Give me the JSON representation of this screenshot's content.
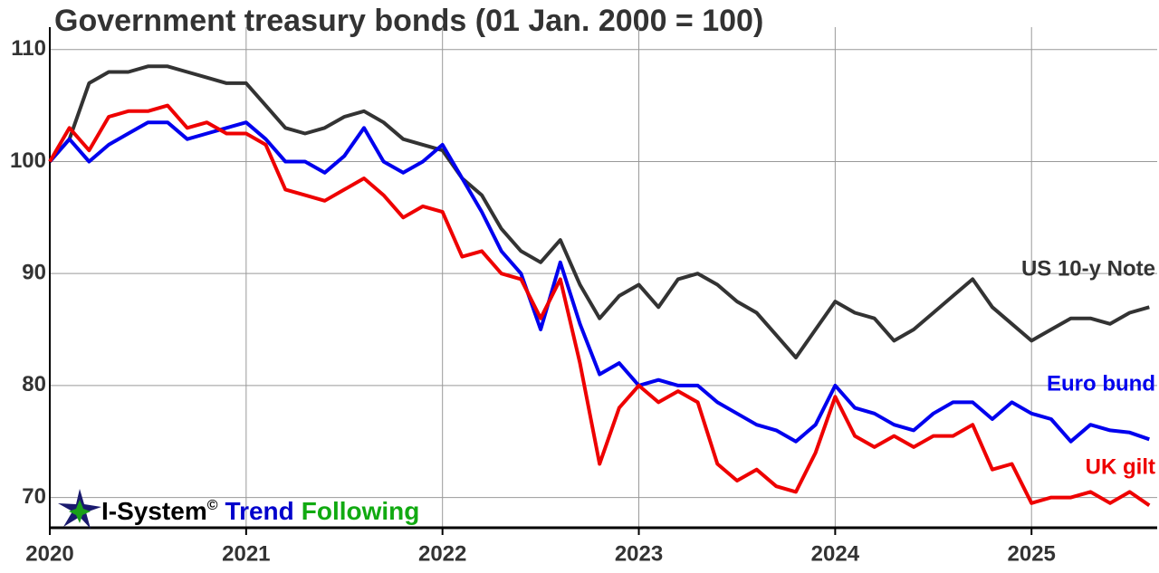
{
  "chart_data": {
    "type": "line",
    "title": "Government treasury bonds (01 Jan. 2000 = 100)",
    "x": [
      2020.0,
      2020.1,
      2020.2,
      2020.3,
      2020.4,
      2020.5,
      2020.6,
      2020.7,
      2020.8,
      2020.9,
      2021.0,
      2021.1,
      2021.2,
      2021.3,
      2021.4,
      2021.5,
      2021.6,
      2021.7,
      2021.8,
      2021.9,
      2022.0,
      2022.1,
      2022.2,
      2022.3,
      2022.4,
      2022.5,
      2022.6,
      2022.7,
      2022.8,
      2022.9,
      2023.0,
      2023.1,
      2023.2,
      2023.3,
      2023.4,
      2023.5,
      2023.6,
      2023.7,
      2023.8,
      2023.9,
      2024.0,
      2024.1,
      2024.2,
      2024.3,
      2024.4,
      2024.5,
      2024.6,
      2024.7,
      2024.8,
      2024.9,
      2025.0,
      2025.1,
      2025.2,
      2025.3,
      2025.4,
      2025.5,
      2025.6
    ],
    "series": [
      {
        "name": "US 10-y Note",
        "color": "#333333",
        "values": [
          100,
          102,
          107,
          108,
          108,
          108.5,
          108.5,
          108,
          107.5,
          107,
          107,
          105,
          103,
          102.5,
          103,
          104,
          104.5,
          103.5,
          102,
          101.5,
          101,
          98.5,
          97,
          94,
          92,
          91,
          93,
          89,
          86,
          88,
          89,
          87,
          89.5,
          90,
          89,
          87.5,
          86.5,
          84.5,
          82.5,
          85,
          87.5,
          86.5,
          86,
          84,
          85,
          86.5,
          88,
          89.5,
          87,
          85.5,
          84,
          85,
          86,
          86,
          85.5,
          86.5,
          87
        ]
      },
      {
        "name": "Euro bund",
        "color": "#0000ee",
        "values": [
          100,
          102,
          100,
          101.5,
          102.5,
          103.5,
          103.5,
          102,
          102.5,
          103,
          103.5,
          102,
          100,
          100,
          99,
          100.5,
          103,
          100,
          99,
          100,
          101.5,
          98.5,
          95.5,
          92,
          90,
          85,
          91,
          85.5,
          81,
          82,
          80,
          80.5,
          80,
          80,
          78.5,
          77.5,
          76.5,
          76,
          75,
          76.5,
          80,
          78,
          77.5,
          76.5,
          76,
          77.5,
          78.5,
          78.5,
          77,
          78.5,
          77.5,
          77,
          75,
          76.5,
          76,
          75.8,
          75.2
        ]
      },
      {
        "name": "UK gilt",
        "color": "#ee0000",
        "values": [
          100,
          103,
          101,
          104,
          104.5,
          104.5,
          105,
          103,
          103.5,
          102.5,
          102.5,
          101.5,
          97.5,
          97,
          96.5,
          97.5,
          98.5,
          97,
          95,
          96,
          95.5,
          91.5,
          92,
          90,
          89.5,
          86,
          89.5,
          82,
          73,
          78,
          80,
          78.5,
          79.5,
          78.5,
          73,
          71.5,
          72.5,
          71,
          70.5,
          74,
          79,
          75.5,
          74.5,
          75.5,
          74.5,
          75.5,
          75.5,
          76.5,
          72.5,
          73,
          69.5,
          70,
          70,
          70.5,
          69.5,
          70.5,
          69.3
        ]
      }
    ],
    "xlim": [
      2020,
      2025.64
    ],
    "xticks": [
      2020,
      2021,
      2022,
      2023,
      2024,
      2025
    ],
    "ylim": [
      67.3,
      112
    ],
    "yticks": [
      70,
      80,
      90,
      100,
      110
    ],
    "grid": true,
    "branding": {
      "name": "I-System",
      "mark": "©",
      "words": [
        "Trend",
        "Following"
      ]
    }
  }
}
